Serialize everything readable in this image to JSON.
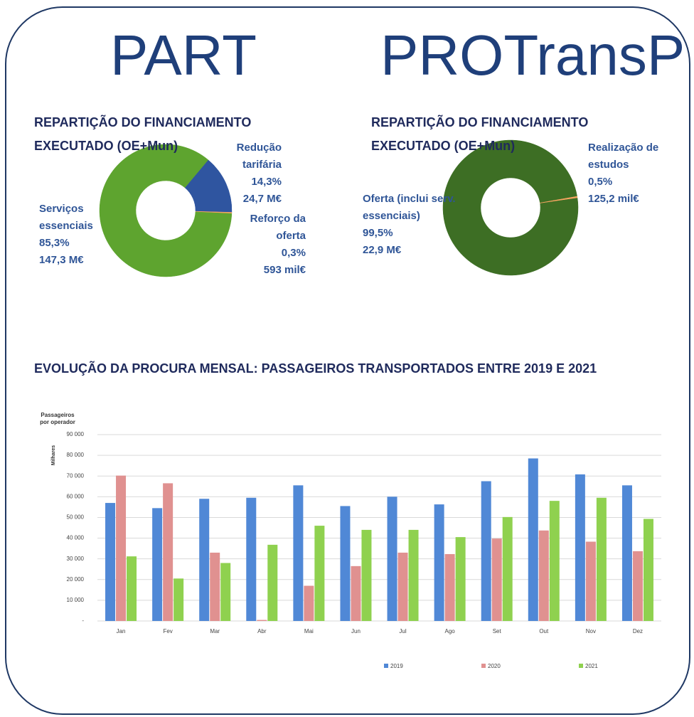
{
  "header": {
    "left": "PART",
    "right": "PROTransP"
  },
  "chart_data": [
    {
      "type": "donut",
      "title": "REPARTIÇÃO DO FINANCIAMENTO EXECUTADO (OE+Mun)",
      "categories": [
        "Redução tarifária",
        "Reforço da oferta",
        "Serviços essenciais"
      ],
      "values": [
        14.3,
        0.3,
        85.3
      ],
      "value_labels": [
        "14,3%",
        "0,3%",
        "85,3%"
      ],
      "amount_labels": [
        "24,7 M€",
        "593 mil€",
        "147,3 M€"
      ],
      "colors": [
        "#2f55a0",
        "#f4a460",
        "#5ea42f"
      ]
    },
    {
      "type": "donut",
      "title": "REPARTIÇÃO DO FINANCIAMENTO EXECUTADO (OE+Mun)",
      "categories": [
        "Realização de estudos",
        "Oferta (inclui serv. essenciais)"
      ],
      "values": [
        0.5,
        99.5
      ],
      "value_labels": [
        "0,5%",
        "99,5%"
      ],
      "amount_labels": [
        "125,2 mil€",
        "22,9 M€"
      ],
      "colors": [
        "#f4a460",
        "#3d6e24"
      ]
    },
    {
      "type": "bar",
      "title": "EVOLUÇÃO DA PROCURA MENSAL: PASSAGEIROS TRANSPORTADOS ENTRE 2019 E 2021",
      "y_label": "Passageiros por operador",
      "y_unit": "Milhares",
      "categories": [
        "Jan",
        "Fev",
        "Mar",
        "Abr",
        "Mai",
        "Jun",
        "Jul",
        "Ago",
        "Set",
        "Out",
        "Nov",
        "Dez"
      ],
      "series": [
        {
          "name": "2019",
          "color": "#5088d6",
          "values": [
            57000,
            54500,
            59000,
            59500,
            65500,
            55500,
            60000,
            56300,
            67500,
            78500,
            70800,
            65500
          ]
        },
        {
          "name": "2020",
          "color": "#e09190",
          "values": [
            70200,
            66500,
            33000,
            500,
            17000,
            26500,
            33000,
            32300,
            39800,
            43700,
            38300,
            33700
          ]
        },
        {
          "name": "2021",
          "color": "#8fd14f",
          "values": [
            31200,
            20500,
            28000,
            36800,
            46000,
            44000,
            44000,
            40500,
            50200,
            58000,
            59500,
            49300
          ]
        }
      ],
      "ylim": [
        0,
        90000
      ],
      "yticks": [
        {
          "value": 0,
          "label": "-"
        },
        {
          "value": 10000,
          "label": "10 000"
        },
        {
          "value": 20000,
          "label": "20 000"
        },
        {
          "value": 30000,
          "label": "30 000"
        },
        {
          "value": 40000,
          "label": "40 000"
        },
        {
          "value": 50000,
          "label": "50 000"
        },
        {
          "value": 60000,
          "label": "60 000"
        },
        {
          "value": 70000,
          "label": "70 000"
        },
        {
          "value": 80000,
          "label": "80 000"
        },
        {
          "value": 90000,
          "label": "90 000"
        }
      ],
      "grid": true
    }
  ]
}
